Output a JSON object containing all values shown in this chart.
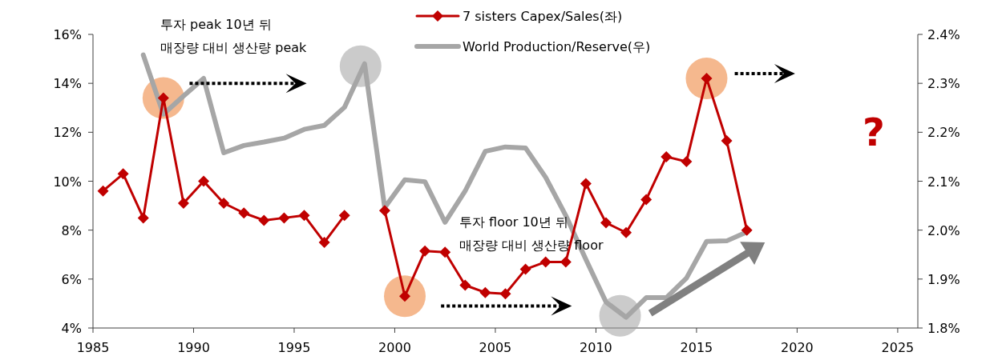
{
  "chart_data": {
    "type": "line",
    "series": [
      {
        "name": "7 sisters Capex/Sales(좌)",
        "color": "#c00000",
        "marker": "diamond",
        "x": [
          1985.5,
          1986.5,
          1987.5,
          1988.5,
          1989.5,
          1990.5,
          1991.5,
          1992.5,
          1993.5,
          1994.5,
          1995.5,
          1996.5,
          1997.5,
          1998.5,
          1999.5,
          2000.5,
          2001.5,
          2002.5,
          2003.5,
          2004.5,
          2005.5,
          2006.5,
          2007.5,
          2008.5,
          2009.5,
          2010.5,
          2011.5,
          2012.5,
          2013.5,
          2014.5,
          2015.5,
          2016.5,
          2017.5
        ],
        "values": [
          9.6,
          10.3,
          8.5,
          13.4,
          9.1,
          10.0,
          9.1,
          8.7,
          8.4,
          8.5,
          8.6,
          7.5,
          8.6,
          null,
          8.8,
          5.3,
          7.15,
          7.1,
          5.75,
          5.45,
          5.4,
          6.4,
          6.7,
          6.7,
          9.9,
          8.3,
          7.9,
          9.25,
          11.0,
          10.8,
          14.2,
          11.65,
          8.0
        ]
      },
      {
        "name": "World Production/Reserve(우)",
        "color": "#a6a6a6",
        "axis": "y2",
        "x": [
          1987.5,
          1988.5,
          1989.5,
          1990.5,
          1991.5,
          1992.5,
          1993.5,
          1994.5,
          1995.5,
          1996.5,
          1997.5,
          1998.5,
          1999.5,
          2000.5,
          2001.5,
          2002.5,
          2003.5,
          2004.5,
          2005.5,
          2006.5,
          2007.5,
          2008.5,
          2009.5,
          2010.5,
          2011.5,
          2012.5,
          2013.5,
          2014.5,
          2015.5,
          2016.5,
          2017.5
        ],
        "values": [
          2.358,
          2.237,
          2.274,
          2.31,
          2.158,
          2.173,
          2.18,
          2.188,
          2.206,
          2.214,
          2.251,
          2.34,
          2.046,
          2.103,
          2.099,
          2.016,
          2.08,
          2.161,
          2.17,
          2.168,
          2.108,
          2.03,
          1.94,
          1.853,
          1.822,
          1.862,
          1.862,
          1.902,
          1.977,
          1.978,
          1.996
        ]
      }
    ],
    "xlim": [
      1985,
      2026
    ],
    "xticks": [
      1985,
      1990,
      1995,
      2000,
      2005,
      2010,
      2015,
      2020,
      2025
    ],
    "ylim": [
      4,
      16
    ],
    "yticks": [
      {
        "value": 4,
        "label": "4%"
      },
      {
        "value": 6,
        "label": "6%"
      },
      {
        "value": 8,
        "label": "8%"
      },
      {
        "value": 10,
        "label": "10%"
      },
      {
        "value": 12,
        "label": "12%"
      },
      {
        "value": 14,
        "label": "14%"
      },
      {
        "value": 16,
        "label": "16%"
      }
    ],
    "y2lim": [
      1.8,
      2.4
    ],
    "y2ticks": [
      {
        "value": 1.8,
        "label": "1.8%"
      },
      {
        "value": 1.9,
        "label": "1.9%"
      },
      {
        "value": 2.0,
        "label": "2.0%"
      },
      {
        "value": 2.1,
        "label": "2.1%"
      },
      {
        "value": 2.2,
        "label": "2.2%"
      },
      {
        "value": 2.3,
        "label": "2.3%"
      },
      {
        "value": 2.4,
        "label": "2.4%"
      }
    ],
    "legend": "top",
    "grid": false,
    "annotations": [
      "투자 peak 10년 뒤\n매장량 대비 생산량 peak",
      "투자 floor 10년 뒤\n매장량 대비 생산량 floor",
      "?"
    ]
  }
}
